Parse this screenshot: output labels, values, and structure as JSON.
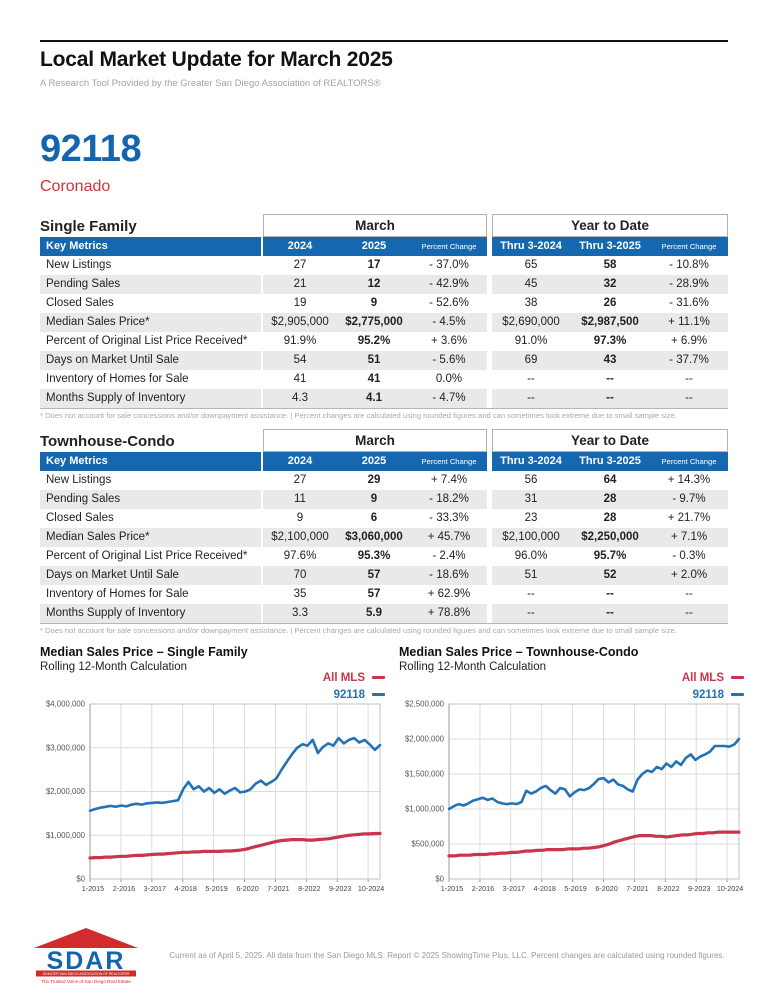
{
  "page": {
    "title": "Local Market Update for March 2025",
    "subtitle": "A Research Tool Provided by the Greater San Diego Association of REALTORS®",
    "zip": "92118",
    "area": "Coronado",
    "table_footnote": "* Does not account for sale concessions and/or downpayment assistance.  |  Percent changes are calculated using rounded figures and can sometimes look extreme due to small sample size.",
    "footer": "Current as of April 5, 2025. All data from the San Diego MLS. Report © 2025 ShowingTime Plus, LLC. Percent changes are calculated using rounded figures.",
    "logo": {
      "name": "SDAR",
      "bar_text": "GREATER SAN DIEGO ASSOCIATION OF REALTORS®",
      "tagline": "The Trusted Voice of San Diego Real Estate"
    }
  },
  "colors": {
    "brand_blue": "#1565ae",
    "brand_red": "#cf3339",
    "line_blue": "#2272b5",
    "line_red": "#c9354a",
    "table_header_blue": "#1568af",
    "stripe_gray": "#e9e9e9"
  },
  "tables": [
    {
      "section": "Single Family",
      "group_headers": [
        "March",
        "Year to Date"
      ],
      "columns": [
        "Key Metrics",
        "2024",
        "2025",
        "Percent Change",
        "Thru 3-2024",
        "Thru 3-2025",
        "Percent Change"
      ],
      "rows": [
        [
          "New Listings",
          "27",
          "17",
          "- 37.0%",
          "65",
          "58",
          "- 10.8%"
        ],
        [
          "Pending Sales",
          "21",
          "12",
          "- 42.9%",
          "45",
          "32",
          "- 28.9%"
        ],
        [
          "Closed Sales",
          "19",
          "9",
          "- 52.6%",
          "38",
          "26",
          "- 31.6%"
        ],
        [
          "Median Sales Price*",
          "$2,905,000",
          "$2,775,000",
          "- 4.5%",
          "$2,690,000",
          "$2,987,500",
          "+ 11.1%"
        ],
        [
          "Percent of Original List Price Received*",
          "91.9%",
          "95.2%",
          "+ 3.6%",
          "91.0%",
          "97.3%",
          "+ 6.9%"
        ],
        [
          "Days on Market Until Sale",
          "54",
          "51",
          "- 5.6%",
          "69",
          "43",
          "- 37.7%"
        ],
        [
          "Inventory of Homes for Sale",
          "41",
          "41",
          "0.0%",
          "--",
          "--",
          "--"
        ],
        [
          "Months Supply of Inventory",
          "4.3",
          "4.1",
          "- 4.7%",
          "--",
          "--",
          "--"
        ]
      ]
    },
    {
      "section": "Townhouse-Condo",
      "group_headers": [
        "March",
        "Year to Date"
      ],
      "columns": [
        "Key Metrics",
        "2024",
        "2025",
        "Percent Change",
        "Thru 3-2024",
        "Thru 3-2025",
        "Percent Change"
      ],
      "rows": [
        [
          "New Listings",
          "27",
          "29",
          "+ 7.4%",
          "56",
          "64",
          "+ 14.3%"
        ],
        [
          "Pending Sales",
          "11",
          "9",
          "- 18.2%",
          "31",
          "28",
          "- 9.7%"
        ],
        [
          "Closed Sales",
          "9",
          "6",
          "- 33.3%",
          "23",
          "28",
          "+ 21.7%"
        ],
        [
          "Median Sales Price*",
          "$2,100,000",
          "$3,060,000",
          "+ 45.7%",
          "$2,100,000",
          "$2,250,000",
          "+ 7.1%"
        ],
        [
          "Percent of Original List Price Received*",
          "97.6%",
          "95.3%",
          "- 2.4%",
          "96.0%",
          "95.7%",
          "- 0.3%"
        ],
        [
          "Days on Market Until Sale",
          "70",
          "57",
          "- 18.6%",
          "51",
          "52",
          "+ 2.0%"
        ],
        [
          "Inventory of Homes for Sale",
          "35",
          "57",
          "+ 62.9%",
          "--",
          "--",
          "--"
        ],
        [
          "Months Supply of Inventory",
          "3.3",
          "5.9",
          "+ 78.8%",
          "--",
          "--",
          "--"
        ]
      ]
    }
  ],
  "chart_data": [
    {
      "type": "line",
      "title": "Median Sales Price – Single Family",
      "subtitle": "Rolling 12-Month Calculation",
      "legend_position": "top-right",
      "grid": true,
      "ylim": [
        0,
        4000000
      ],
      "y_ticks": [
        "$0",
        "$1,000,000",
        "$2,000,000",
        "$3,000,000",
        "$4,000,000"
      ],
      "x_ticks": [
        "1-2015",
        "2-2016",
        "3-2017",
        "4-2018",
        "5-2019",
        "6-2020",
        "7-2021",
        "8-2022",
        "9-2023",
        "10-2024"
      ],
      "series": [
        {
          "name": "All MLS",
          "color": "#c9354a",
          "width": 3.2,
          "values": [
            480000,
            490000,
            490000,
            500000,
            500000,
            510000,
            520000,
            520000,
            530000,
            540000,
            540000,
            550000,
            560000,
            570000,
            570000,
            580000,
            590000,
            600000,
            610000,
            610000,
            620000,
            620000,
            630000,
            630000,
            630000,
            630000,
            640000,
            640000,
            650000,
            660000,
            680000,
            710000,
            740000,
            770000,
            800000,
            830000,
            860000,
            880000,
            890000,
            900000,
            900000,
            900000,
            890000,
            890000,
            900000,
            910000,
            920000,
            940000,
            960000,
            980000,
            1000000,
            1010000,
            1020000,
            1030000,
            1030000,
            1040000,
            1040000
          ]
        },
        {
          "name": "92118",
          "color": "#2272b5",
          "width": 2.6,
          "values": [
            1560000,
            1600000,
            1630000,
            1650000,
            1670000,
            1650000,
            1680000,
            1660000,
            1700000,
            1720000,
            1700000,
            1730000,
            1740000,
            1750000,
            1740000,
            1760000,
            1780000,
            1800000,
            2050000,
            2220000,
            2050000,
            2120000,
            2000000,
            2080000,
            1970000,
            2050000,
            1950000,
            2020000,
            2080000,
            1980000,
            2000000,
            2050000,
            2180000,
            2250000,
            2150000,
            2220000,
            2300000,
            2500000,
            2680000,
            2850000,
            3000000,
            3080000,
            3050000,
            3180000,
            2880000,
            3020000,
            3100000,
            3050000,
            3220000,
            3100000,
            3180000,
            3220000,
            3120000,
            3180000,
            3080000,
            2950000,
            3060000
          ]
        }
      ]
    },
    {
      "type": "line",
      "title": "Median Sales Price – Townhouse-Condo",
      "subtitle": "Rolling 12-Month Calculation",
      "legend_position": "top-right",
      "grid": true,
      "ylim": [
        0,
        2500000
      ],
      "y_ticks": [
        "$0",
        "$500,000",
        "$1,000,000",
        "$1,500,000",
        "$2,000,000",
        "$2,500,000"
      ],
      "x_ticks": [
        "1-2015",
        "2-2016",
        "3-2017",
        "4-2018",
        "5-2019",
        "6-2020",
        "7-2021",
        "8-2022",
        "9-2023",
        "10-2024"
      ],
      "series": [
        {
          "name": "All MLS",
          "color": "#c9354a",
          "width": 3.2,
          "values": [
            330000,
            330000,
            340000,
            340000,
            340000,
            350000,
            350000,
            350000,
            360000,
            360000,
            370000,
            370000,
            380000,
            380000,
            390000,
            400000,
            400000,
            410000,
            410000,
            420000,
            420000,
            420000,
            420000,
            430000,
            430000,
            430000,
            440000,
            440000,
            450000,
            460000,
            480000,
            500000,
            530000,
            550000,
            570000,
            590000,
            610000,
            620000,
            620000,
            620000,
            610000,
            610000,
            600000,
            610000,
            620000,
            630000,
            630000,
            640000,
            650000,
            650000,
            660000,
            660000,
            670000,
            670000,
            670000,
            670000,
            670000
          ]
        },
        {
          "name": "92118",
          "color": "#2272b5",
          "width": 2.6,
          "values": [
            1000000,
            1040000,
            1070000,
            1050000,
            1080000,
            1120000,
            1140000,
            1160000,
            1130000,
            1150000,
            1100000,
            1080000,
            1070000,
            1080000,
            1070000,
            1100000,
            1260000,
            1220000,
            1250000,
            1300000,
            1330000,
            1270000,
            1220000,
            1300000,
            1280000,
            1180000,
            1240000,
            1280000,
            1270000,
            1300000,
            1360000,
            1430000,
            1440000,
            1380000,
            1420000,
            1350000,
            1330000,
            1280000,
            1250000,
            1420000,
            1500000,
            1550000,
            1530000,
            1600000,
            1570000,
            1650000,
            1600000,
            1680000,
            1630000,
            1730000,
            1780000,
            1700000,
            1750000,
            1780000,
            1820000,
            1900000,
            1900000,
            1900000,
            1890000,
            1920000,
            2000000
          ]
        }
      ]
    }
  ]
}
